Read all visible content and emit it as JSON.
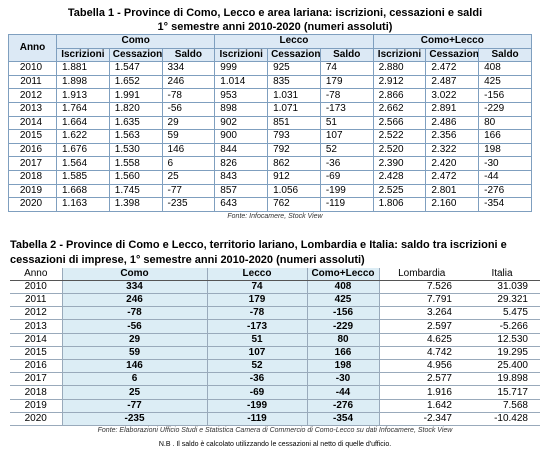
{
  "table1": {
    "title": "Tabella 1 - Province di Como, Lecco e area lariana: iscrizioni, cessazioni e saldi",
    "subtitle": "1° semestre anni 2010-2020 (numeri assoluti)",
    "header": [
      "Anno",
      "Como",
      "Lecco",
      "Como+Lecco"
    ],
    "subheader": [
      "Iscrizioni",
      "Cessazioni",
      "Saldo",
      "Iscrizioni",
      "Cessazioni",
      "Saldo",
      "Iscrizioni",
      "Cessazioni",
      "Saldo"
    ],
    "rows": [
      [
        "2010",
        "1.881",
        "1.547",
        "334",
        "999",
        "925",
        "74",
        "2.880",
        "2.472",
        "408"
      ],
      [
        "2011",
        "1.898",
        "1.652",
        "246",
        "1.014",
        "835",
        "179",
        "2.912",
        "2.487",
        "425"
      ],
      [
        "2012",
        "1.913",
        "1.991",
        "-78",
        "953",
        "1.031",
        "-78",
        "2.866",
        "3.022",
        "-156"
      ],
      [
        "2013",
        "1.764",
        "1.820",
        "-56",
        "898",
        "1.071",
        "-173",
        "2.662",
        "2.891",
        "-229"
      ],
      [
        "2014",
        "1.664",
        "1.635",
        "29",
        "902",
        "851",
        "51",
        "2.566",
        "2.486",
        "80"
      ],
      [
        "2015",
        "1.622",
        "1.563",
        "59",
        "900",
        "793",
        "107",
        "2.522",
        "2.356",
        "166"
      ],
      [
        "2016",
        "1.676",
        "1.530",
        "146",
        "844",
        "792",
        "52",
        "2.520",
        "2.322",
        "198"
      ],
      [
        "2017",
        "1.564",
        "1.558",
        "6",
        "826",
        "862",
        "-36",
        "2.390",
        "2.420",
        "-30"
      ],
      [
        "2018",
        "1.585",
        "1.560",
        "25",
        "843",
        "912",
        "-69",
        "2.428",
        "2.472",
        "-44"
      ],
      [
        "2019",
        "1.668",
        "1.745",
        "-77",
        "857",
        "1.056",
        "-199",
        "2.525",
        "2.801",
        "-276"
      ],
      [
        "2020",
        "1.163",
        "1.398",
        "-235",
        "643",
        "762",
        "-119",
        "1.806",
        "2.160",
        "-354"
      ]
    ],
    "source": "Fonte: Infocamere, Stock View"
  },
  "table2": {
    "title": "Tabella 2 - Province di Como e Lecco, territorio lariano, Lombardia e Italia: saldo tra iscrizioni e",
    "subtitle": "cessazioni di imprese, 1° semestre anni 2010-2020 (numeri assoluti)",
    "header": [
      "Anno",
      "Como",
      "Lecco",
      "Como+Lecco",
      "Lombardia",
      "Italia"
    ],
    "rows": [
      [
        "2010",
        "334",
        "74",
        "408",
        "7.526",
        "31.039"
      ],
      [
        "2011",
        "246",
        "179",
        "425",
        "7.791",
        "29.321"
      ],
      [
        "2012",
        "-78",
        "-78",
        "-156",
        "3.264",
        "5.475"
      ],
      [
        "2013",
        "-56",
        "-173",
        "-229",
        "2.597",
        "-5.266"
      ],
      [
        "2014",
        "29",
        "51",
        "80",
        "4.625",
        "12.530"
      ],
      [
        "2015",
        "59",
        "107",
        "166",
        "4.742",
        "19.295"
      ],
      [
        "2016",
        "146",
        "52",
        "198",
        "4.956",
        "25.400"
      ],
      [
        "2017",
        "6",
        "-36",
        "-30",
        "2.577",
        "19.898"
      ],
      [
        "2018",
        "25",
        "-69",
        "-44",
        "1.916",
        "15.717"
      ],
      [
        "2019",
        "-77",
        "-199",
        "-276",
        "1.642",
        "7.568"
      ],
      [
        "2020",
        "-235",
        "-119",
        "-354",
        "-2.347",
        "-10.428"
      ]
    ],
    "source": "Fonte: Elaborazioni Ufficio Studi e Statistica Camera di Commercio di Como-Lecco su dati Infocamere, Stock View",
    "note": "N.B . Il saldo è calcolato utilizzando le cessazioni al netto di quelle d'ufficio."
  }
}
